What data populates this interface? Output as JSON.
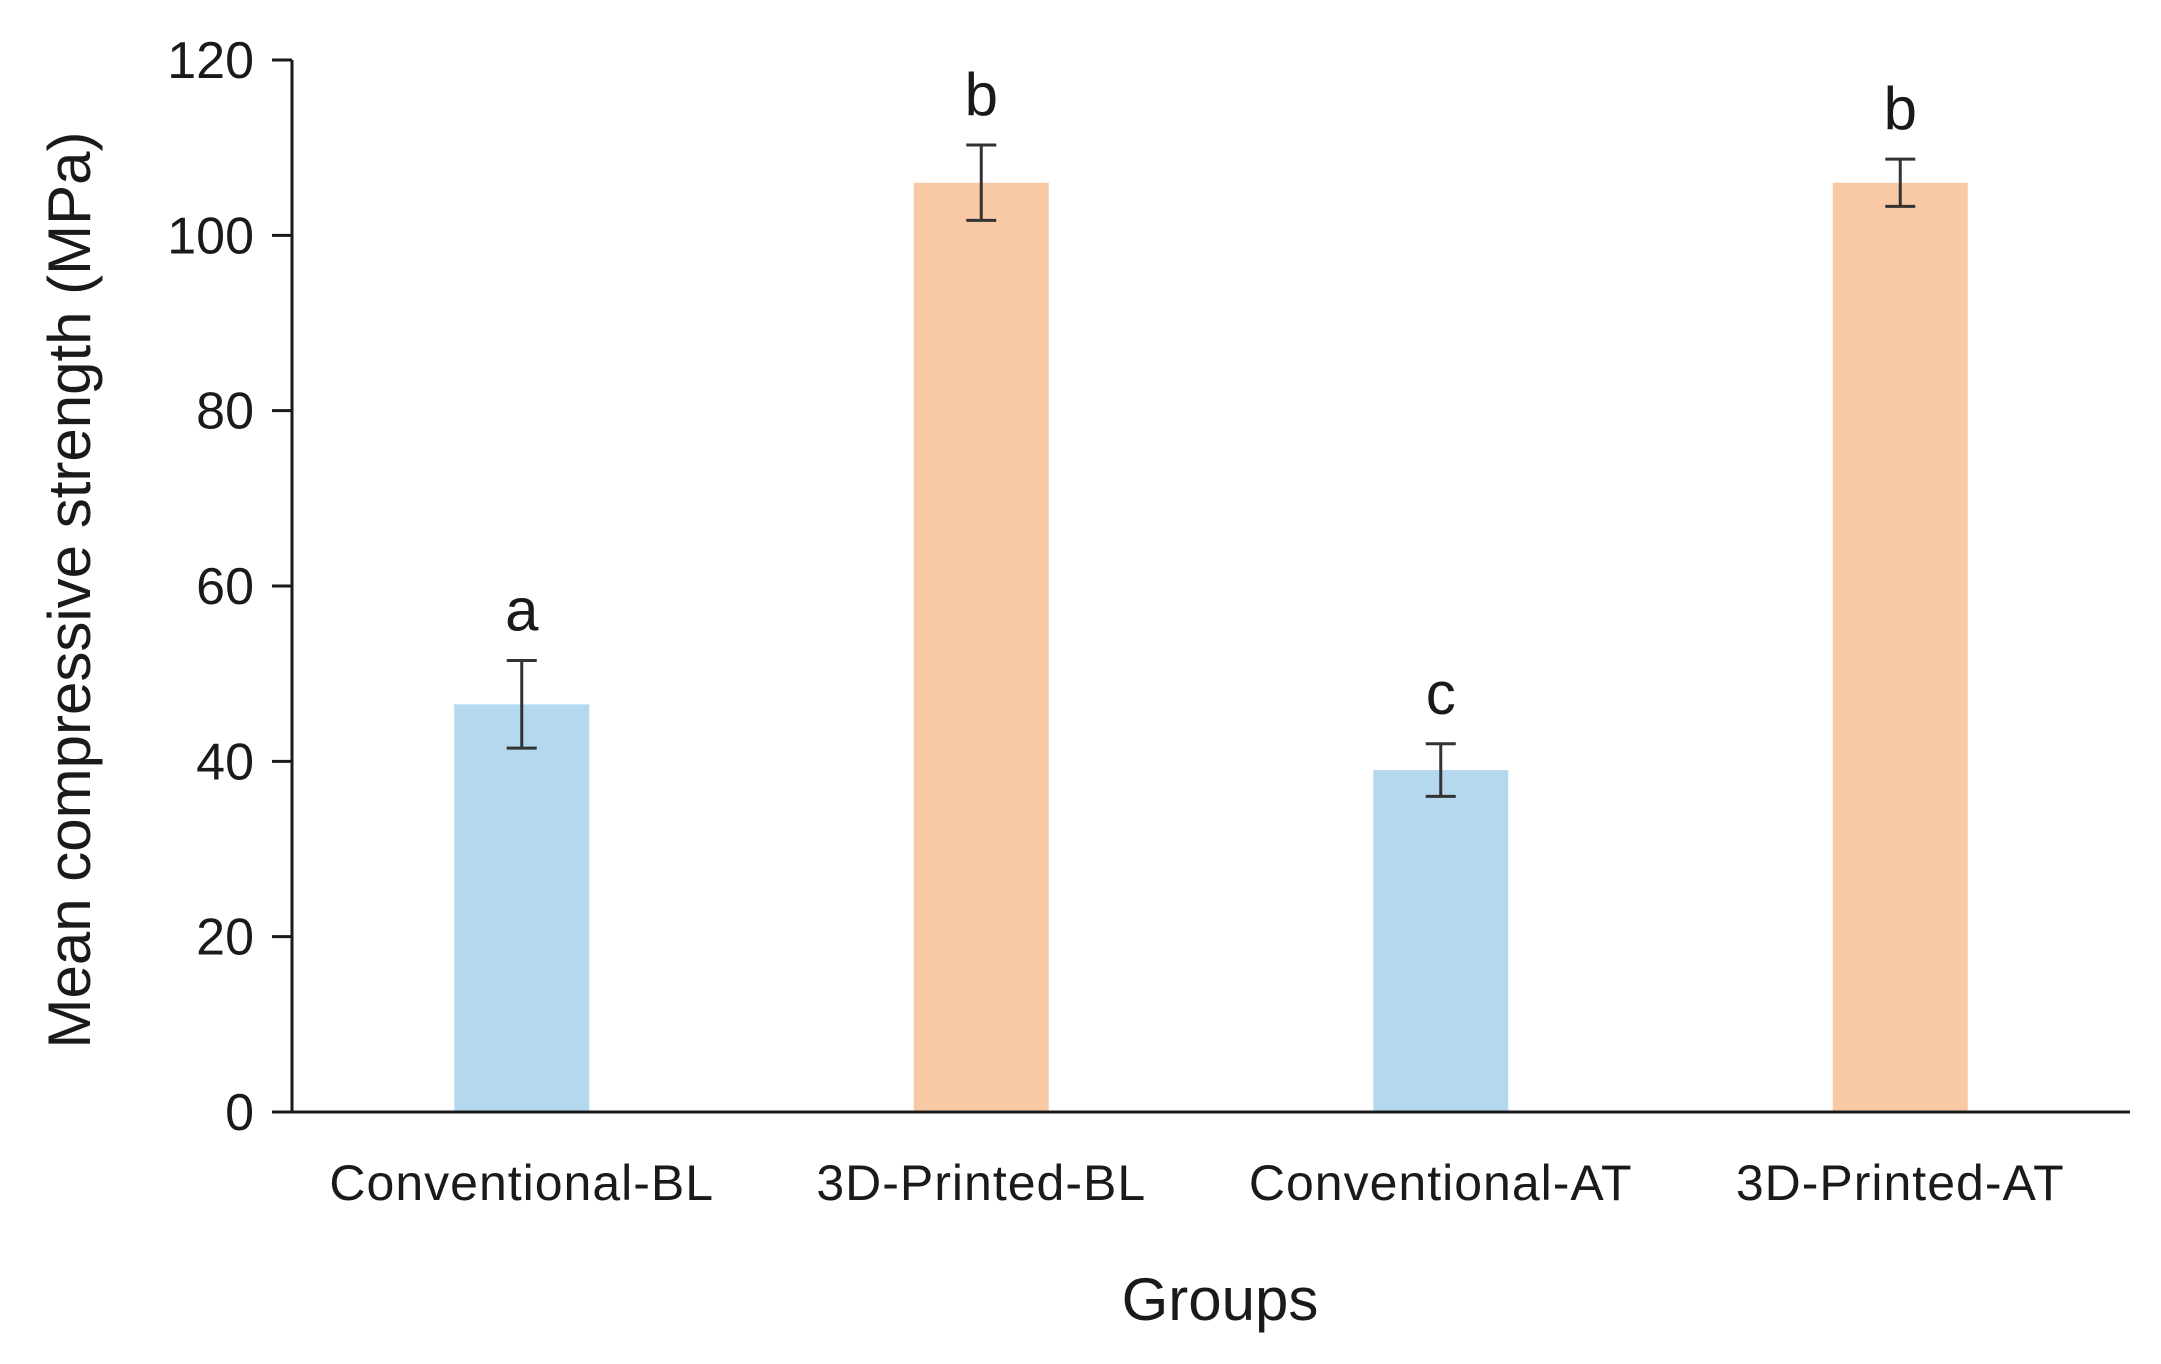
{
  "chart_data": {
    "type": "bar",
    "title": "",
    "xlabel": "Groups",
    "ylabel": "Mean compressive strength (MPa)",
    "ylim": [
      0,
      120
    ],
    "yticks": [
      0,
      20,
      40,
      60,
      80,
      100,
      120
    ],
    "grid": false,
    "legend": "none",
    "categories": [
      "Conventional-BL",
      "3D-Printed-BL",
      "Conventional-AT",
      "3D-Printed-AT"
    ],
    "values": [
      46.5,
      106,
      39,
      106
    ],
    "error": [
      5,
      4.3,
      3,
      2.7
    ],
    "significance_letters": [
      "a",
      "b",
      "c",
      "b"
    ],
    "bar_colors": [
      "#b4d8ee",
      "#f9c9a5",
      "#b4d8ee",
      "#f9c9a5"
    ]
  }
}
